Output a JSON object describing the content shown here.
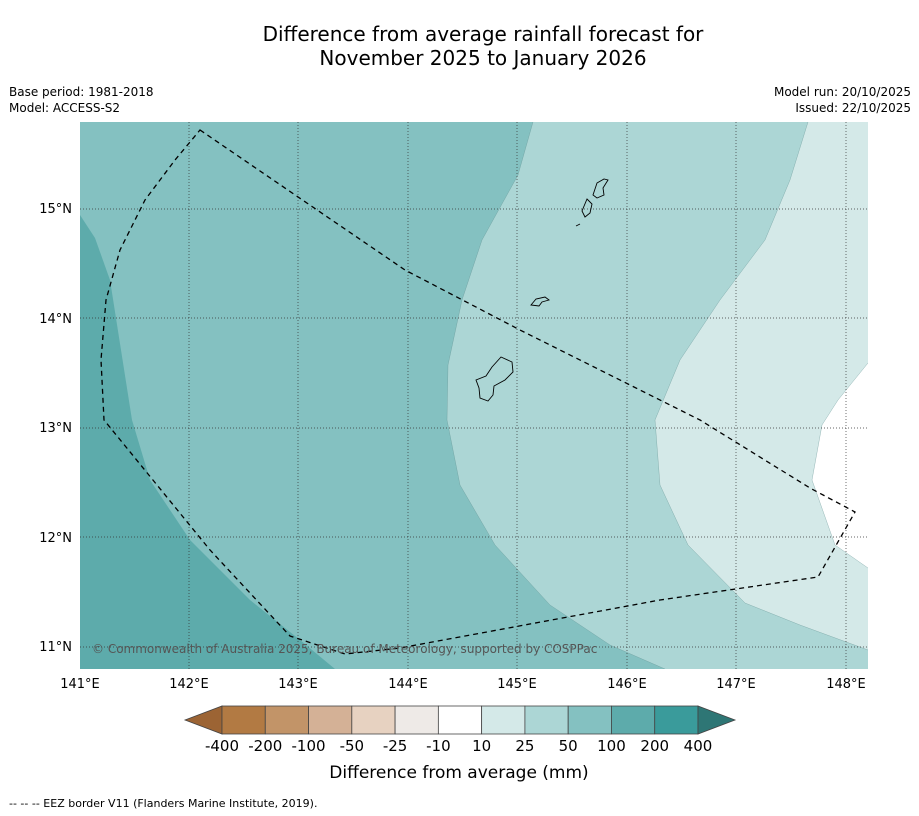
{
  "title_line1": "Difference from average rainfall forecast for",
  "title_line2": "November 2025 to January 2026",
  "base_period": "Base period: 1981-2018",
  "model": "Model: ACCESS-S2",
  "model_run": "Model run: 20/10/2025",
  "issued": "Issued: 22/10/2025",
  "copyright": "© Commonwealth of Australia 2025, Bureau of Meteorology, supported by COSPPac",
  "map": {
    "lon_range": [
      141,
      148.2
    ],
    "lat_range": [
      10.8,
      15.8
    ],
    "lon_ticks": [
      "141°E",
      "142°E",
      "143°E",
      "144°E",
      "145°E",
      "146°E",
      "147°E",
      "148°E"
    ],
    "lat_ticks": [
      "15°N",
      "14°N",
      "13°N",
      "12°N",
      "11°N"
    ]
  },
  "colorbar": {
    "labels": [
      "-400",
      "-200",
      "-100",
      "-50",
      "-25",
      "-10",
      "10",
      "25",
      "50",
      "100",
      "200",
      "400"
    ],
    "colors": [
      "#9c6434",
      "#b27a43",
      "#c29468",
      "#d4b196",
      "#e7d2c1",
      "#eeeae7",
      "#ffffff",
      "#d4e9e8",
      "#acd6d5",
      "#84c1c1",
      "#5dabab",
      "#3a9b9b",
      "#2e7675"
    ],
    "title": "Difference from average (mm)"
  },
  "legend_footer": "--  --  -- EEZ border V11 (Flanders Marine Institute, 2019)."
}
